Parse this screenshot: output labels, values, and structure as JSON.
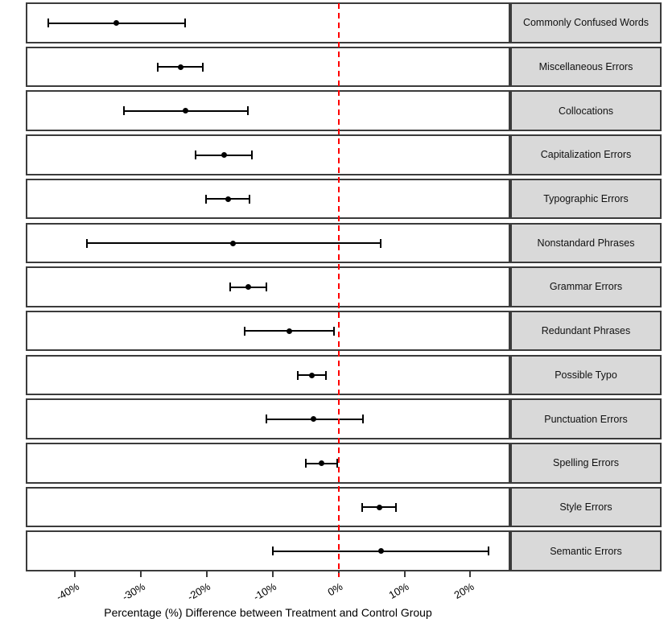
{
  "figure": {
    "background": "#ffffff",
    "panel_border_color": "#3b3b3b",
    "strip_fill": "#d9d9d9",
    "strip_text_color": "#111111",
    "errorbar_color": "#000000",
    "zero_line_color": "#ff0000"
  },
  "chart_data": {
    "type": "scatter",
    "subtype": "forest-plot-faceted",
    "title": "",
    "xlabel": "Percentage (%) Difference between Treatment and Control Group",
    "ylabel": "",
    "xlim": [
      -47.2,
      25.8
    ],
    "x_ticks": [
      -40,
      -30,
      -20,
      -10,
      0,
      10,
      20
    ],
    "x_tick_labels": [
      "-40%",
      "-30%",
      "-20%",
      "-10%",
      "0%",
      "10%",
      "20%"
    ],
    "reference_line_x": 0,
    "reference_line_style": "red dashed vertical",
    "grid": "off",
    "legend": "none",
    "facet_strip_position": "right",
    "facets": [
      {
        "label": "Commonly Confused Words",
        "estimate": -33.7,
        "ci_low": -44.0,
        "ci_high": -23.3
      },
      {
        "label": "Miscellaneous Errors",
        "estimate": -24.0,
        "ci_low": -27.4,
        "ci_high": -20.6
      },
      {
        "label": "Collocations",
        "estimate": -23.2,
        "ci_low": -32.5,
        "ci_high": -13.7
      },
      {
        "label": "Capitalization Errors",
        "estimate": -17.4,
        "ci_low": -21.7,
        "ci_high": -13.2
      },
      {
        "label": "Typographic Errors",
        "estimate": -16.8,
        "ci_low": -20.1,
        "ci_high": -13.5
      },
      {
        "label": "Nonstandard Phrases",
        "estimate": -16.0,
        "ci_low": -38.2,
        "ci_high": 6.4
      },
      {
        "label": "Grammar Errors",
        "estimate": -13.7,
        "ci_low": -16.4,
        "ci_high": -10.9
      },
      {
        "label": "Redundant Phrases",
        "estimate": -7.5,
        "ci_low": -14.3,
        "ci_high": -0.7
      },
      {
        "label": "Possible Typo",
        "estimate": -4.0,
        "ci_low": -6.2,
        "ci_high": -1.9
      },
      {
        "label": "Punctuation Errors",
        "estimate": -3.8,
        "ci_low": -11.0,
        "ci_high": 3.7
      },
      {
        "label": "Spelling Errors",
        "estimate": -2.6,
        "ci_low": -5.0,
        "ci_high": -0.2
      },
      {
        "label": "Style Errors",
        "estimate": 6.2,
        "ci_low": 3.6,
        "ci_high": 8.7
      },
      {
        "label": "Semantic Errors",
        "estimate": 6.4,
        "ci_low": -10.0,
        "ci_high": 22.7
      }
    ]
  }
}
